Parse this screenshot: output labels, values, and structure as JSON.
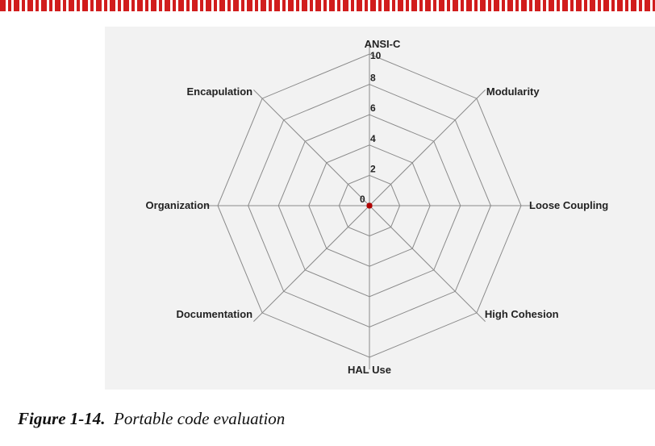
{
  "colors": {
    "top_strip": "#d11d1d",
    "panel_background": "#f2f2f2",
    "grid": "#8a8a8a",
    "center_point": "#b00000",
    "text": "#222222"
  },
  "chart_data": {
    "type": "radar",
    "axes": [
      "ANSI-C",
      "Modularity",
      "Loose Coupling",
      "High Cohesion",
      "HAL Use",
      "Documentation",
      "Organization",
      "Encapulation"
    ],
    "rlim": [
      0,
      10
    ],
    "ticks": [
      0,
      2,
      4,
      6,
      8,
      10
    ],
    "tick_labels": [
      "0",
      "2",
      "4",
      "6",
      "8",
      "10"
    ],
    "series": [
      {
        "values": [
          0,
          0,
          0,
          0,
          0,
          0,
          0,
          0
        ],
        "color": "#b00000"
      }
    ],
    "grid": true,
    "legend": "none"
  },
  "caption": {
    "figure_number": "Figure 1-14.",
    "text": "Portable code evaluation"
  }
}
